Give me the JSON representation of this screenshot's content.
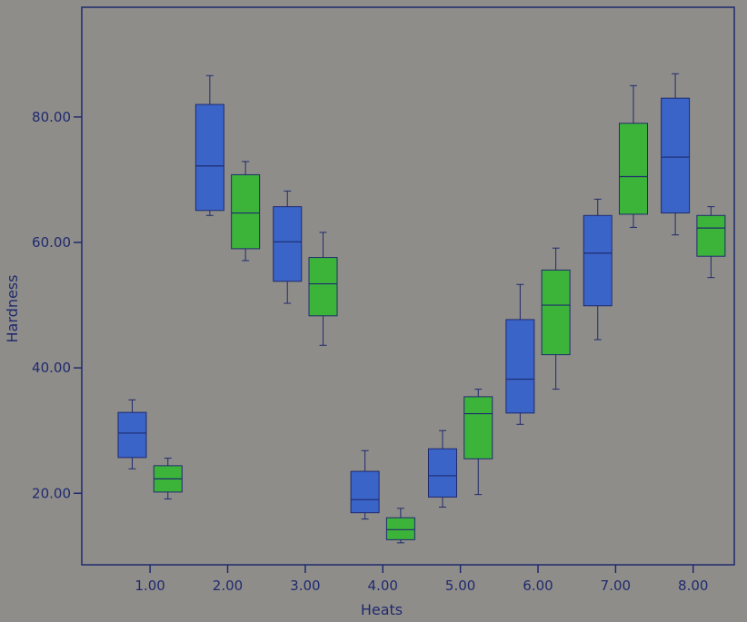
{
  "chart_data": {
    "type": "boxplot",
    "xlabel": "Heats",
    "ylabel": "Hardness",
    "x_ticks": [
      "1.00",
      "2.00",
      "3.00",
      "4.00",
      "5.00",
      "6.00",
      "7.00",
      "8.00"
    ],
    "y_ticks": [
      "20.00",
      "40.00",
      "60.00",
      "80.00"
    ],
    "xlim": [
      0.12,
      8.53
    ],
    "ylim": [
      8.6,
      97.5
    ],
    "grid": false,
    "legend": "none",
    "colors": {
      "blue": "#3a64c8",
      "green": "#3cb43a",
      "axis": "#1f2a6e",
      "background": "#8f8d8a"
    },
    "boxes": [
      {
        "x": 0.77,
        "color": "blue",
        "min": 23.9,
        "q1": 25.7,
        "median": 29.6,
        "q3": 32.9,
        "max": 34.9
      },
      {
        "x": 1.23,
        "color": "green",
        "min": 19.1,
        "q1": 20.2,
        "median": 22.3,
        "q3": 24.4,
        "max": 25.6
      },
      {
        "x": 1.77,
        "color": "blue",
        "min": 64.3,
        "q1": 65.1,
        "median": 72.2,
        "q3": 82.0,
        "max": 86.6
      },
      {
        "x": 2.23,
        "color": "green",
        "min": 57.1,
        "q1": 59.0,
        "median": 64.7,
        "q3": 70.8,
        "max": 72.9
      },
      {
        "x": 2.77,
        "color": "blue",
        "min": 50.3,
        "q1": 53.8,
        "median": 60.1,
        "q3": 65.7,
        "max": 68.2
      },
      {
        "x": 3.23,
        "color": "green",
        "min": 43.6,
        "q1": 48.3,
        "median": 53.4,
        "q3": 57.6,
        "max": 61.6
      },
      {
        "x": 3.77,
        "color": "blue",
        "min": 15.9,
        "q1": 16.9,
        "median": 19.0,
        "q3": 23.5,
        "max": 26.8
      },
      {
        "x": 4.23,
        "color": "green",
        "min": 12.1,
        "q1": 12.6,
        "median": 14.2,
        "q3": 16.1,
        "max": 17.6
      },
      {
        "x": 4.77,
        "color": "blue",
        "min": 17.8,
        "q1": 19.4,
        "median": 22.8,
        "q3": 27.1,
        "max": 30.0
      },
      {
        "x": 5.23,
        "color": "green",
        "min": 19.8,
        "q1": 25.5,
        "median": 32.7,
        "q3": 35.4,
        "max": 36.6
      },
      {
        "x": 5.77,
        "color": "blue",
        "min": 31.0,
        "q1": 32.8,
        "median": 38.2,
        "q3": 47.7,
        "max": 53.3
      },
      {
        "x": 6.23,
        "color": "green",
        "min": 36.6,
        "q1": 42.1,
        "median": 50.0,
        "q3": 55.6,
        "max": 59.1
      },
      {
        "x": 6.77,
        "color": "blue",
        "min": 44.5,
        "q1": 49.9,
        "median": 58.3,
        "q3": 64.3,
        "max": 66.9
      },
      {
        "x": 7.23,
        "color": "green",
        "min": 62.4,
        "q1": 64.5,
        "median": 70.5,
        "q3": 79.0,
        "max": 85.0
      },
      {
        "x": 7.77,
        "color": "blue",
        "min": 61.2,
        "q1": 64.7,
        "median": 73.6,
        "q3": 83.0,
        "max": 86.9
      },
      {
        "x": 8.23,
        "color": "green",
        "min": 54.4,
        "q1": 57.8,
        "median": 62.3,
        "q3": 64.3,
        "max": 65.7
      }
    ]
  }
}
